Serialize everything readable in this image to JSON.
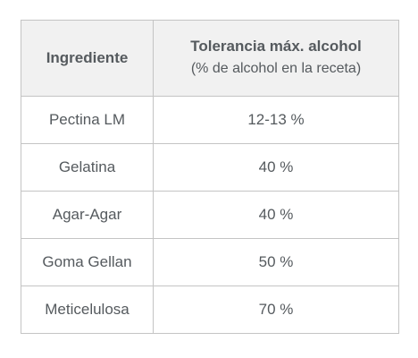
{
  "table": {
    "headers": {
      "ingredient": "Ingrediente",
      "tolerance_title": "Tolerancia máx. alcohol",
      "tolerance_subtitle": "(% de alcohol en la receta)"
    },
    "rows": [
      {
        "ingredient": "Pectina LM",
        "tolerance": "12-13 %"
      },
      {
        "ingredient": "Gelatina",
        "tolerance": "40 %"
      },
      {
        "ingredient": "Agar-Agar",
        "tolerance": "40 %"
      },
      {
        "ingredient": "Goma Gellan",
        "tolerance": "50 %"
      },
      {
        "ingredient": "Meticelulosa",
        "tolerance": "70 %"
      }
    ]
  }
}
